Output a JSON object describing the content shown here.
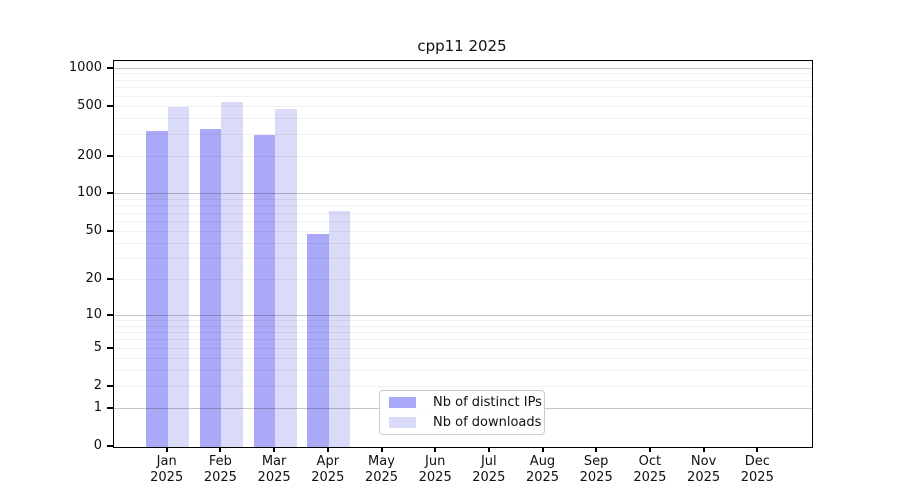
{
  "chart_data": {
    "type": "bar",
    "title": "cpp11 2025",
    "categories": [
      "Jan",
      "Feb",
      "Mar",
      "Apr",
      "May",
      "Jun",
      "Jul",
      "Aug",
      "Sep",
      "Oct",
      "Nov",
      "Dec"
    ],
    "year": "2025",
    "series": [
      {
        "name": "Nb of distinct IPs",
        "color": "#a9a9f7",
        "values": [
          320,
          330,
          295,
          48,
          null,
          null,
          null,
          null,
          null,
          null,
          null,
          null
        ]
      },
      {
        "name": "Nb of downloads",
        "color": "#dadaf9",
        "values": [
          500,
          540,
          480,
          74,
          null,
          null,
          null,
          null,
          null,
          null,
          null,
          null
        ]
      }
    ],
    "xlabel": "",
    "ylabel": "",
    "yscale": "log(1+x)",
    "ylim": [
      0,
      1150
    ],
    "yticks": [
      0,
      1,
      2,
      5,
      10,
      20,
      50,
      100,
      200,
      500,
      1000
    ],
    "grid": {
      "major_lines": [
        1,
        10,
        100,
        1000
      ],
      "minor_lines": "2-9 per decade"
    },
    "legend_position": "lower center"
  }
}
